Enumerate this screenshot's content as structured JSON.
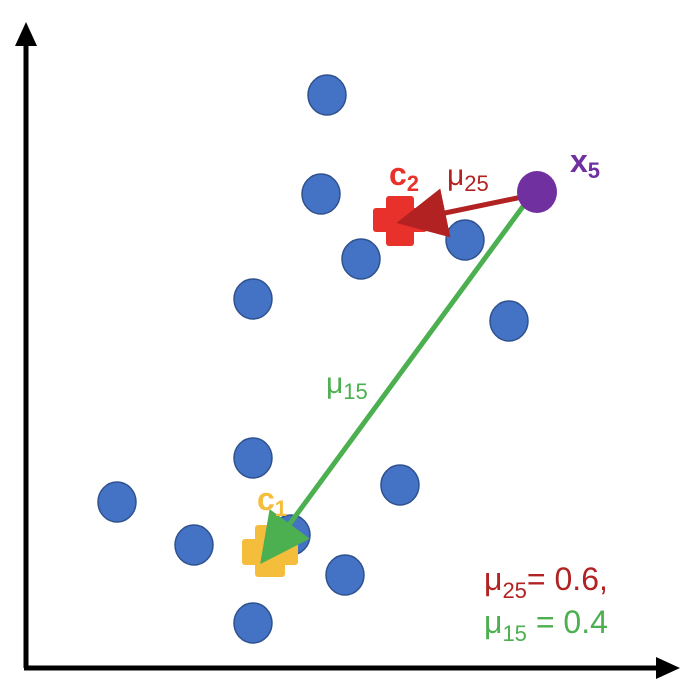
{
  "colors": {
    "point_fill": "#4472C4",
    "point_stroke": "#2F528F",
    "c2": "#E8312A",
    "c1": "#F5BD3C",
    "x5": "#7030A0",
    "mu25": "#B22222",
    "mu15": "#4CAF50",
    "axis": "#000000"
  },
  "labels": {
    "c1_base": "c",
    "c1_sub": "1",
    "c2_base": "c",
    "c2_sub": "2",
    "x5_base": "x",
    "x5_sub": "5",
    "mu25_base": "μ",
    "mu25_sub": "25",
    "mu15_base": "μ",
    "mu15_sub": "15"
  },
  "formulas": {
    "line1": {
      "base": "μ",
      "sub": "25",
      "rest": "= 0.6,"
    },
    "line2": {
      "base": "μ",
      "sub": "15",
      "rest": " = 0.4"
    }
  }
}
